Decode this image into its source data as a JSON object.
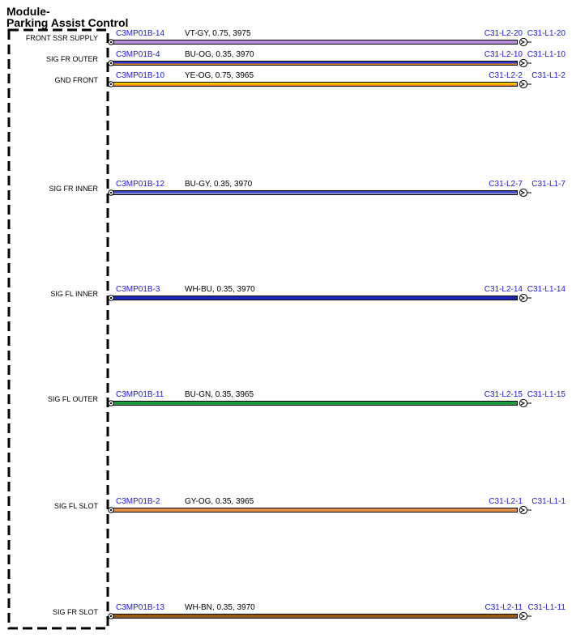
{
  "module": {
    "title_line1": "Module-",
    "title_line2": "Parking Assist Control"
  },
  "colors": {
    "connector_text": "#1a1ad6",
    "outline": "#000000"
  },
  "circuits": [
    {
      "name": "FRONT SSR SUPPLY",
      "from": "C3MP01B-14",
      "spec": "VT-GY,  0.75,  3975",
      "inline": "C31-L2-20",
      "to": "C31-L1-20",
      "wire_color": "#b48ed8"
    },
    {
      "name": "SIG FR OUTER",
      "from": "C3MP01B-4",
      "spec": "BU-OG,  0.35,  3970",
      "inline": "C31-L2-10",
      "to": "C31-L1-10",
      "wire_color": "#2a3bd0",
      "stripe_color": "#f08a28"
    },
    {
      "name": "GND FRONT",
      "from": "C3MP01B-10",
      "spec": "YE-OG,  0.75,  3965",
      "inline": "C31-L2-2",
      "to": "C31-L1-2",
      "wire_color": "#f7c800",
      "stripe_color": "#f07f1a"
    },
    {
      "name": "SIG FR INNER",
      "from": "C3MP01B-12",
      "spec": "BU-GY,  0.35,  3970",
      "inline": "C31-L2-7",
      "to": "C31-L1-7",
      "wire_color": "#3b44cc",
      "stripe_color": "#9aa0c8"
    },
    {
      "name": "SIG FL INNER",
      "from": "C3MP01B-3",
      "spec": "WH-BU,  0.35,  3970",
      "inline": "C31-L2-14",
      "to": "C31-L1-14",
      "wire_color": "#1b27b8"
    },
    {
      "name": "SIG FL OUTER",
      "from": "C3MP01B-11",
      "spec": "BU-GN,  0.35,  3965",
      "inline": "C31-L2-15",
      "to": "C31-L1-15",
      "wire_color": "#1f9a3e"
    },
    {
      "name": "SIG FL SLOT",
      "from": "C3MP01B-2",
      "spec": "GY-OG,  0.35,  3965",
      "inline": "C31-L2-1",
      "to": "C31-L1-1",
      "wire_color": "#e39148"
    },
    {
      "name": "SIG FR SLOT",
      "from": "C3MP01B-13",
      "spec": "WH-BN,  0.35,  3970",
      "inline": "C31-L2-11",
      "to": "C31-L1-11",
      "wire_color": "#9a5a14"
    }
  ]
}
